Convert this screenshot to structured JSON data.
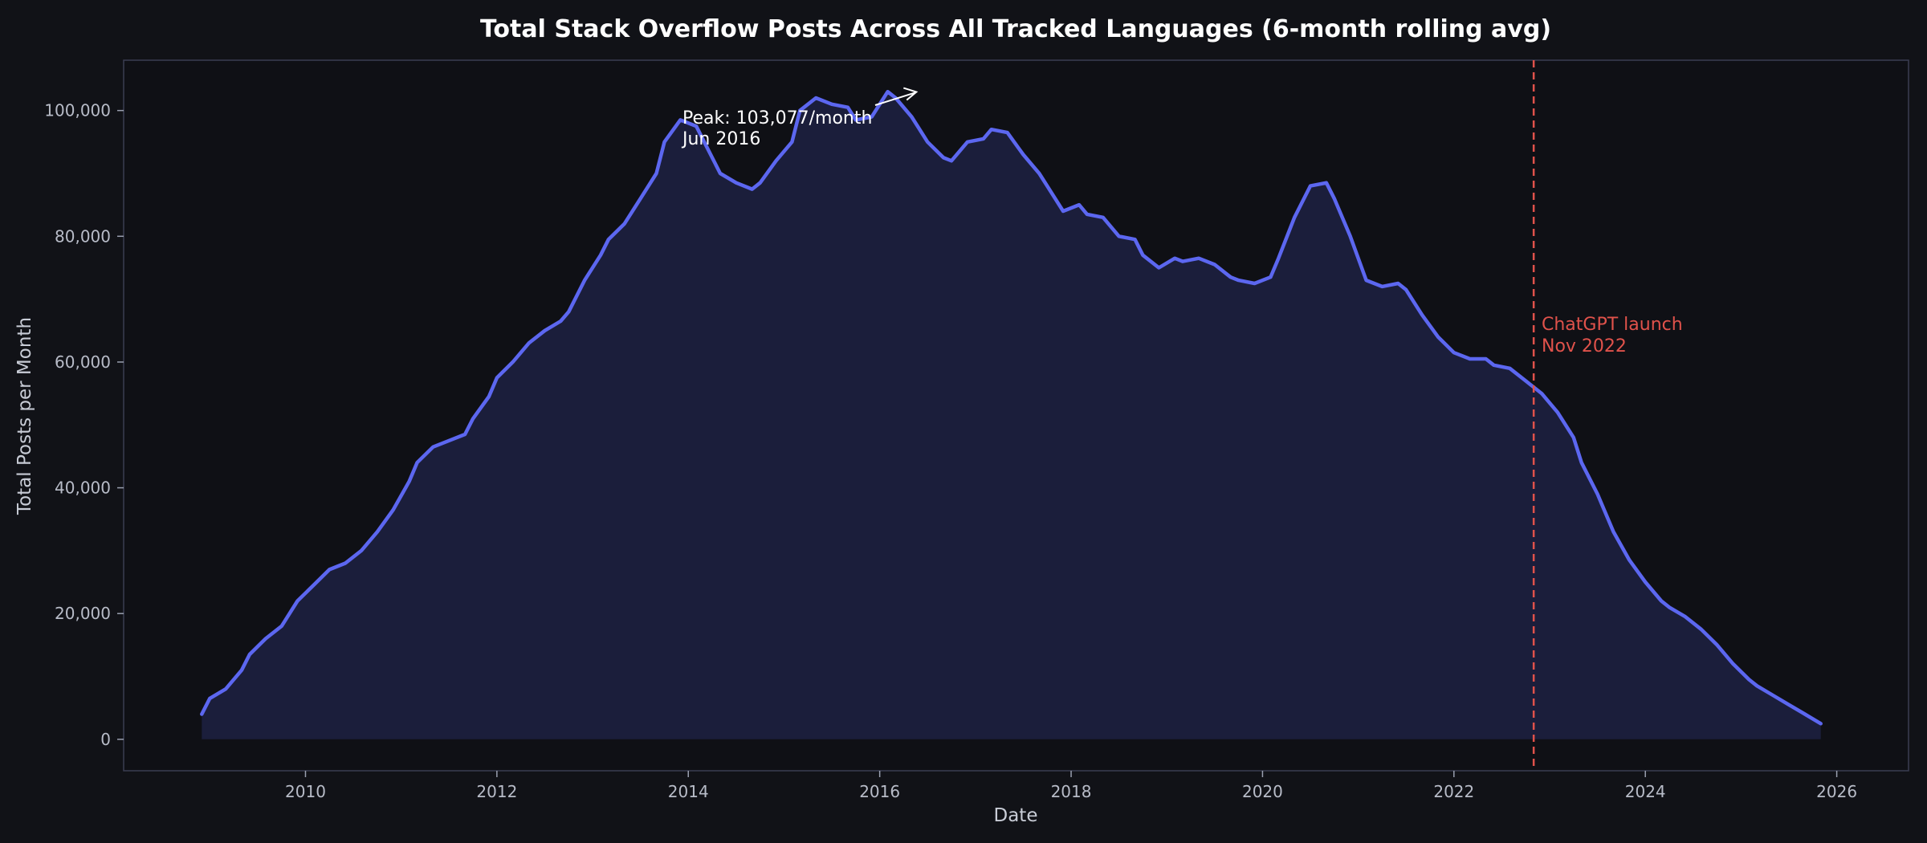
{
  "chart_data": {
    "type": "area",
    "title": "Total Stack Overflow Posts Across All Tracked Languages (6-month rolling avg)",
    "xlabel": "Date",
    "ylabel": "Total Posts per Month",
    "xlim": [
      2008.1,
      2026.75
    ],
    "ylim": [
      -5000,
      108000
    ],
    "x_ticks": [
      2010,
      2012,
      2014,
      2016,
      2018,
      2020,
      2022,
      2024,
      2026
    ],
    "x_tick_labels": [
      "2010",
      "2012",
      "2014",
      "2016",
      "2018",
      "2020",
      "2022",
      "2024",
      "2026"
    ],
    "y_ticks": [
      0,
      20000,
      40000,
      60000,
      80000,
      100000
    ],
    "y_tick_labels": [
      "0",
      "20,000",
      "40,000",
      "60,000",
      "80,000",
      "100,000"
    ],
    "grid": false,
    "colors": {
      "line": "#5c67f0",
      "fill": "#1b1e3b",
      "background": "#111217",
      "vline": "#e0524b"
    },
    "series": [
      {
        "x": [
          "2008-12",
          "2009-01",
          "2009-03",
          "2009-05",
          "2009-06",
          "2009-08",
          "2009-10",
          "2009-12",
          "2010-02",
          "2010-04",
          "2010-06",
          "2010-08",
          "2010-10",
          "2010-12",
          "2011-02",
          "2011-03",
          "2011-05",
          "2011-07",
          "2011-09",
          "2011-10",
          "2011-12",
          "2012-01",
          "2012-03",
          "2012-05",
          "2012-07",
          "2012-09",
          "2012-10",
          "2012-12",
          "2013-02",
          "2013-03",
          "2013-05",
          "2013-07",
          "2013-09",
          "2013-10",
          "2013-12",
          "2014-02",
          "2014-03",
          "2014-05",
          "2014-07",
          "2014-09",
          "2014-10",
          "2014-12",
          "2015-02",
          "2015-03",
          "2015-05",
          "2015-07",
          "2015-09",
          "2015-10",
          "2015-12",
          "2016-02",
          "2016-03",
          "2016-05",
          "2016-07",
          "2016-09",
          "2016-10",
          "2016-12",
          "2017-02",
          "2017-03",
          "2017-05",
          "2017-07",
          "2017-09",
          "2017-10",
          "2017-12",
          "2018-02",
          "2018-03",
          "2018-05",
          "2018-07",
          "2018-09",
          "2018-10",
          "2018-12",
          "2019-02",
          "2019-03",
          "2019-05",
          "2019-07",
          "2019-09",
          "2019-10",
          "2019-12",
          "2020-02",
          "2020-03",
          "2020-05",
          "2020-07",
          "2020-09",
          "2020-10",
          "2020-12",
          "2021-02",
          "2021-04",
          "2021-06",
          "2021-07",
          "2021-09",
          "2021-11",
          "2022-01",
          "2022-03",
          "2022-05",
          "2022-06",
          "2022-08",
          "2022-10",
          "2022-12",
          "2023-02",
          "2023-04",
          "2023-05",
          "2023-07",
          "2023-09",
          "2023-11",
          "2024-01",
          "2024-03",
          "2024-04",
          "2024-06",
          "2024-08",
          "2024-10",
          "2024-12",
          "2025-02",
          "2025-03",
          "2025-05",
          "2025-07",
          "2025-09",
          "2025-11"
        ],
        "y": [
          4000,
          6500,
          8000,
          11000,
          13500,
          16000,
          18000,
          22000,
          24500,
          27000,
          28000,
          30000,
          33000,
          36500,
          41000,
          44000,
          46500,
          47500,
          48500,
          51000,
          54500,
          57500,
          60000,
          63000,
          65000,
          66500,
          68000,
          73000,
          77000,
          79500,
          82000,
          86000,
          90000,
          95000,
          98500,
          97500,
          95000,
          90000,
          88500,
          87500,
          88500,
          92000,
          95000,
          100000,
          102000,
          101000,
          100500,
          98500,
          99000,
          103000,
          102000,
          99000,
          95000,
          92500,
          92000,
          95000,
          95500,
          97000,
          96500,
          93000,
          90000,
          88000,
          84000,
          85000,
          83500,
          83000,
          80000,
          79500,
          77000,
          75000,
          76500,
          76000,
          76500,
          75500,
          73500,
          73000,
          72500,
          73500,
          76500,
          83000,
          88000,
          88500,
          86000,
          80000,
          73000,
          72000,
          72500,
          71500,
          67500,
          64000,
          61500,
          60500,
          60500,
          59500,
          59000,
          57000,
          55000,
          52000,
          48000,
          44000,
          39000,
          33000,
          28500,
          25000,
          22000,
          21000,
          19500,
          17500,
          15000,
          12000,
          9500,
          8500,
          7000,
          5500,
          4000,
          2500
        ]
      }
    ],
    "annotation": {
      "text_line1": "Peak: 103,077/month",
      "text_line2": "Jun 2016",
      "point": [
        "2016-06",
        103077
      ]
    },
    "vline": {
      "x": "2022-11",
      "label_line1": "ChatGPT launch",
      "label_line2": "Nov 2022"
    }
  }
}
